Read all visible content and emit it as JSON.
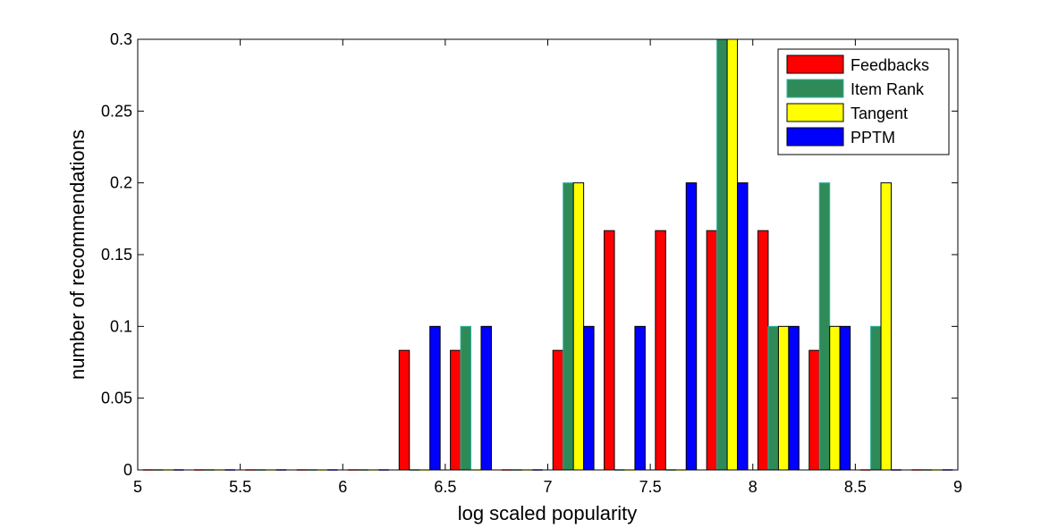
{
  "chart_data": {
    "type": "bar",
    "title": "",
    "xlabel": "log scaled popularity",
    "ylabel": "number of recommendations",
    "xlim": [
      5,
      9
    ],
    "ylim": [
      0,
      0.3
    ],
    "x_ticks": [
      "5",
      "5.5",
      "6",
      "6.5",
      "7",
      "7.5",
      "8",
      "8.5",
      "9"
    ],
    "y_ticks": [
      "0",
      "0.05",
      "0.1",
      "0.15",
      "0.2",
      "0.25",
      "0.3"
    ],
    "legend_position": "top-right",
    "bin_centers": [
      5.125,
      5.375,
      5.625,
      5.875,
      6.125,
      6.375,
      6.625,
      6.875,
      7.125,
      7.375,
      7.625,
      7.875,
      8.125,
      8.375,
      8.625,
      8.875
    ],
    "series": [
      {
        "name": "Feedbacks",
        "color": "#ff0000",
        "values": [
          0,
          0,
          0,
          0,
          0,
          0.0833,
          0.0833,
          0,
          0.0833,
          0.1667,
          0.1667,
          0.1667,
          0.1667,
          0.0833,
          0,
          0
        ]
      },
      {
        "name": "Item Rank",
        "color": "#2e8b57",
        "values": [
          0,
          0,
          0,
          0,
          0,
          0,
          0.1,
          0,
          0.2,
          0,
          0,
          0.3,
          0.1,
          0.2,
          0.1,
          0
        ]
      },
      {
        "name": "Tangent",
        "color": "#ffff00",
        "values": [
          0,
          0,
          0,
          0,
          0,
          0,
          0,
          0,
          0.2,
          0,
          0,
          0.3,
          0.1,
          0.1,
          0.2,
          0
        ]
      },
      {
        "name": "PPTM",
        "color": "#0000ff",
        "values": [
          0,
          0,
          0,
          0,
          0,
          0.1,
          0.1,
          0,
          0.1,
          0.1,
          0.2,
          0.2,
          0.1,
          0.1,
          0,
          0
        ]
      }
    ]
  }
}
